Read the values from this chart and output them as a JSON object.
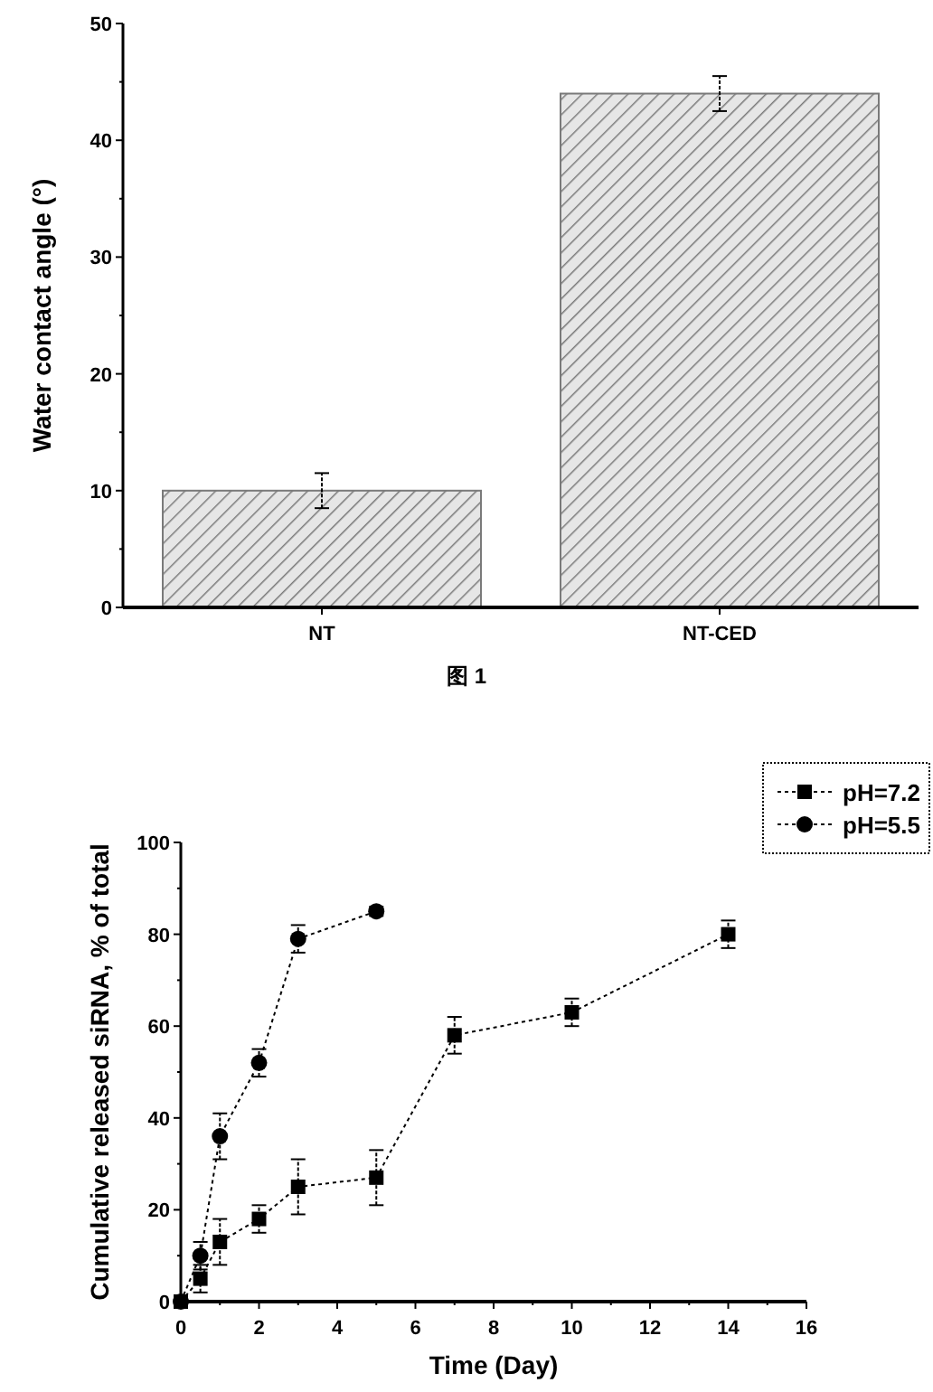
{
  "chart_data": [
    {
      "type": "bar",
      "ylabel": "Water contact angle (°)",
      "categories": [
        "NT",
        "NT-CED"
      ],
      "values": [
        10,
        44
      ],
      "errors": [
        1.5,
        1.5
      ],
      "color": "#7a7a7a",
      "ylim": [
        0,
        50
      ],
      "yticks": [
        0,
        10,
        20,
        30,
        40,
        50
      ],
      "grid": false,
      "annotations": [
        "图 1"
      ]
    },
    {
      "type": "line",
      "xlabel": "Time (Day)",
      "ylabel": "Cumulative released siRNA, % of total",
      "xlim": [
        0,
        16
      ],
      "xticks": [
        0,
        2,
        4,
        6,
        8,
        10,
        12,
        14,
        16
      ],
      "ylim": [
        0,
        100
      ],
      "yticks": [
        0,
        20,
        40,
        60,
        80,
        100
      ],
      "grid": false,
      "legend": "top right",
      "line_style": "dotted",
      "series": [
        {
          "name": "pH=7.2",
          "color": "#000000",
          "marker": "square",
          "x": [
            0,
            0.5,
            1,
            2,
            3,
            5,
            7,
            10,
            14
          ],
          "values": [
            0,
            5,
            13,
            18,
            25,
            27,
            58,
            63,
            80
          ],
          "errors": [
            null,
            3,
            5,
            3,
            6,
            6,
            4,
            3,
            3
          ]
        },
        {
          "name": "pH=5.5",
          "color": "#000000",
          "marker": "circle",
          "x": [
            0,
            0.5,
            1,
            2,
            3,
            5
          ],
          "values": [
            0,
            10,
            36,
            52,
            79,
            85
          ],
          "errors": [
            null,
            3,
            5,
            3,
            3,
            1
          ]
        }
      ]
    }
  ]
}
